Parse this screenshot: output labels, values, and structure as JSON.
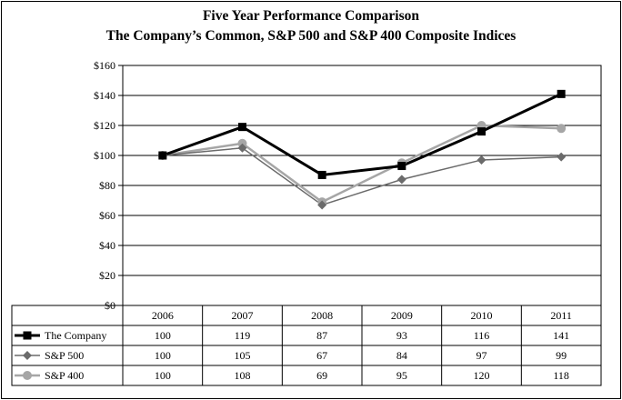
{
  "chart_data": {
    "type": "line",
    "title": "Five Year Performance Comparison",
    "subtitle": "The Company’s Common, S&P 500 and S&P 400 Composite Indices",
    "categories": [
      "2006",
      "2007",
      "2008",
      "2009",
      "2010",
      "2011"
    ],
    "ylim": [
      0,
      160
    ],
    "yticks": [
      0,
      20,
      40,
      60,
      80,
      100,
      120,
      140,
      160
    ],
    "ytick_labels": [
      "$0",
      "$20",
      "$40",
      "$60",
      "$80",
      "$100",
      "$120",
      "$140",
      "$160"
    ],
    "grid": true,
    "legend": "data-table",
    "series": [
      {
        "name": "The Company",
        "values": [
          100,
          119,
          87,
          93,
          116,
          141
        ],
        "color": "#000000",
        "marker": "square"
      },
      {
        "name": "S&P 500",
        "values": [
          100,
          105,
          67,
          84,
          97,
          99
        ],
        "color": "#6b6b6b",
        "marker": "diamond"
      },
      {
        "name": "S&P 400",
        "values": [
          100,
          108,
          69,
          95,
          120,
          118
        ],
        "color": "#a6a6a6",
        "marker": "circle"
      }
    ]
  }
}
